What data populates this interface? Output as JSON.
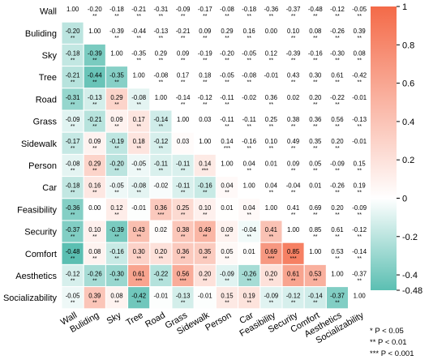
{
  "chart_data": {
    "type": "heatmap",
    "title": "",
    "variables": [
      "Wall",
      "Buliding",
      "Sky",
      "Tree",
      "Road",
      "Grass",
      "Sidewalk",
      "Person",
      "Car",
      "Feasibility",
      "Security",
      "Comfort",
      "Aesthetics",
      "Socializability"
    ],
    "values": [
      [
        1.0,
        -0.2,
        -0.18,
        -0.21,
        -0.31,
        -0.09,
        -0.17,
        -0.08,
        -0.18,
        -0.36,
        -0.37,
        -0.48,
        -0.12,
        -0.05
      ],
      [
        -0.2,
        1.0,
        -0.39,
        -0.44,
        -0.13,
        -0.21,
        0.09,
        0.29,
        0.16,
        0.0,
        0.1,
        0.08,
        -0.26,
        0.39
      ],
      [
        -0.18,
        -0.39,
        1.0,
        -0.35,
        0.29,
        0.09,
        -0.19,
        -0.2,
        -0.05,
        0.12,
        -0.39,
        -0.16,
        -0.3,
        0.08
      ],
      [
        -0.21,
        -0.44,
        -0.35,
        1.0,
        -0.08,
        0.17,
        0.18,
        -0.05,
        -0.08,
        -0.01,
        0.43,
        0.3,
        0.61,
        -0.42
      ],
      [
        -0.31,
        -0.13,
        0.29,
        -0.08,
        1.0,
        -0.14,
        -0.12,
        -0.11,
        -0.02,
        0.36,
        0.02,
        0.2,
        -0.22,
        -0.01
      ],
      [
        -0.09,
        -0.21,
        0.09,
        0.17,
        -0.14,
        1.0,
        0.03,
        -0.11,
        -0.11,
        0.25,
        0.38,
        0.36,
        0.56,
        -0.13
      ],
      [
        -0.17,
        0.09,
        -0.19,
        0.18,
        -0.12,
        0.03,
        1.0,
        0.14,
        -0.16,
        0.1,
        0.49,
        0.35,
        0.2,
        -0.01
      ],
      [
        -0.08,
        0.29,
        -0.2,
        -0.05,
        -0.11,
        -0.11,
        0.14,
        1.0,
        0.04,
        0.01,
        0.09,
        0.05,
        -0.09,
        0.15
      ],
      [
        -0.18,
        0.16,
        -0.05,
        -0.08,
        -0.02,
        -0.11,
        -0.16,
        0.04,
        1.0,
        0.04,
        -0.04,
        0.01,
        -0.26,
        0.19
      ],
      [
        -0.36,
        0.0,
        0.12,
        -0.01,
        0.36,
        0.25,
        0.1,
        0.01,
        0.04,
        1.0,
        0.41,
        0.69,
        0.2,
        -0.09
      ],
      [
        -0.37,
        0.1,
        -0.39,
        0.43,
        0.02,
        0.38,
        0.49,
        0.09,
        -0.04,
        0.41,
        1.0,
        0.85,
        0.61,
        -0.12
      ],
      [
        -0.48,
        0.08,
        -0.16,
        0.3,
        0.2,
        0.36,
        0.35,
        0.05,
        0.01,
        0.69,
        0.85,
        1.0,
        0.53,
        -0.14
      ],
      [
        -0.12,
        -0.26,
        -0.3,
        0.61,
        -0.22,
        0.56,
        0.2,
        -0.09,
        -0.26,
        0.2,
        0.61,
        0.53,
        1.0,
        -0.37
      ],
      [
        -0.05,
        0.39,
        0.08,
        -0.42,
        -0.01,
        -0.13,
        -0.01,
        0.15,
        0.19,
        -0.09,
        -0.12,
        -0.14,
        -0.37,
        1.0
      ]
    ],
    "significance": [
      [
        "",
        "**",
        "**",
        "**",
        "**",
        "**",
        "**",
        "**",
        "**",
        "**",
        "**",
        "**",
        "**",
        "**"
      ],
      [
        "**",
        "",
        "**",
        "**",
        "**",
        "**",
        "**",
        "**",
        "**",
        "",
        "**",
        "**",
        "**",
        "**"
      ],
      [
        "**",
        "**",
        "",
        "**",
        "**",
        "**",
        "**",
        "**",
        "**",
        "**",
        "**",
        "**",
        "**",
        "**"
      ],
      [
        "**",
        "**",
        "**",
        "",
        "**",
        "**",
        "**",
        "**",
        "**",
        "",
        "**",
        "**",
        "**",
        "**"
      ],
      [
        "**",
        "**",
        "**",
        "**",
        "",
        "**",
        "**",
        "**",
        "",
        "**",
        "",
        "**",
        "**",
        ""
      ],
      [
        "**",
        "**",
        "**",
        "**",
        "**",
        "",
        "",
        "**",
        "**",
        "**",
        "**",
        "**",
        "**",
        "**"
      ],
      [
        "**",
        "**",
        "**",
        "**",
        "**",
        "",
        "",
        "***",
        "**",
        "**",
        "**",
        "**",
        "**",
        ""
      ],
      [
        "**",
        "**",
        "**",
        "**",
        "**",
        "**",
        "***",
        "",
        "**",
        "",
        "**",
        "**",
        "**",
        "**"
      ],
      [
        "**",
        "**",
        "**",
        "**",
        "",
        "**",
        "**",
        "**",
        "",
        "**",
        "**",
        "",
        "**",
        "**"
      ],
      [
        "**",
        "",
        "**",
        "",
        "***",
        "**",
        "**",
        "",
        "**",
        "",
        "**",
        "**",
        "**",
        "**"
      ],
      [
        "**",
        "**",
        "**",
        "**",
        "",
        "**",
        "**",
        "**",
        "**",
        "**",
        "",
        "**",
        "**",
        "**"
      ],
      [
        "**",
        "**",
        "**",
        "**",
        "**",
        "**",
        "**",
        "**",
        "",
        "***",
        "***",
        "",
        "**",
        "**"
      ],
      [
        "**",
        "**",
        "**",
        "***",
        "**",
        "***",
        "**",
        "**",
        "**",
        "**",
        "**",
        "**",
        "",
        "**"
      ],
      [
        "**",
        "**",
        "**",
        "**",
        "",
        "**",
        "",
        "**",
        "**",
        "**",
        "**",
        "**",
        "**",
        ""
      ]
    ],
    "colorscale": {
      "min": -0.48,
      "mid": 0,
      "max": 1,
      "low_color": "#5bbfb2",
      "mid_color": "#ffffff",
      "high_color": "#f46a48"
    },
    "colorbar": {
      "ticks": [
        1,
        0.8,
        0.6,
        0.4,
        0.2,
        0,
        -0.2,
        -0.4,
        -0.48
      ],
      "tick_labels": [
        "1",
        "0.8",
        "0.6",
        "0.4",
        "0.2",
        "0",
        "-0.2",
        "-0.4",
        "-0.48"
      ]
    }
  },
  "significance_legend": [
    "* P < 0.05",
    "** P < 0.01",
    "*** P < 0.001"
  ]
}
